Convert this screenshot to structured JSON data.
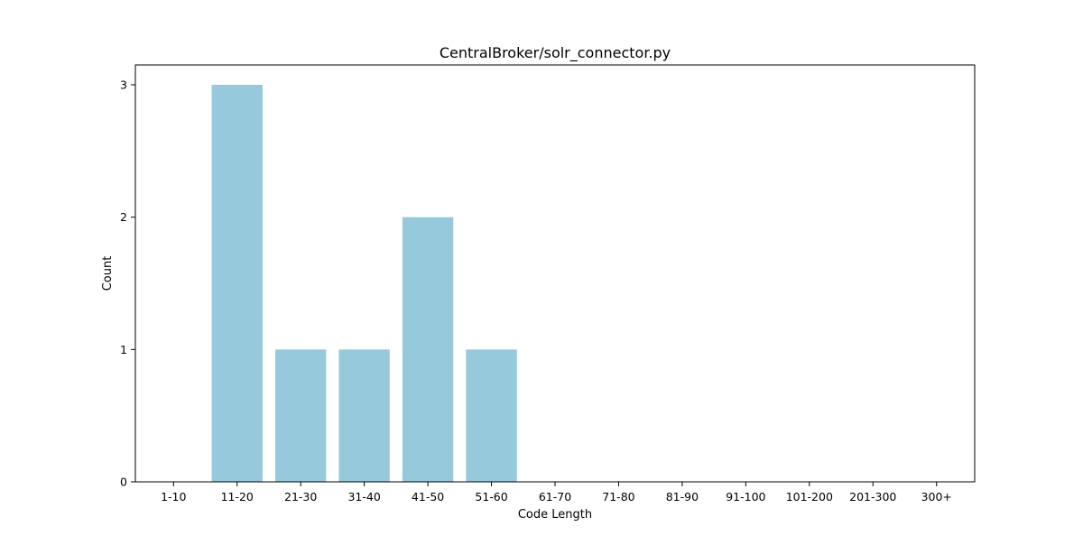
{
  "colors": {
    "bar": "#96c9dc",
    "axes": "#000000",
    "background": "#ffffff"
  },
  "chart_data": {
    "type": "bar",
    "title": "CentralBroker/solr_connector.py",
    "xlabel": "Code Length",
    "ylabel": "Count",
    "categories": [
      "1-10",
      "11-20",
      "21-30",
      "31-40",
      "41-50",
      "51-60",
      "61-70",
      "71-80",
      "81-90",
      "91-100",
      "101-200",
      "201-300",
      "300+"
    ],
    "values": [
      0,
      3,
      1,
      1,
      2,
      1,
      0,
      0,
      0,
      0,
      0,
      0,
      0
    ],
    "ylim": [
      0,
      3.15
    ],
    "yticks": [
      0,
      1,
      2,
      3
    ],
    "grid": false,
    "legend": "none"
  }
}
